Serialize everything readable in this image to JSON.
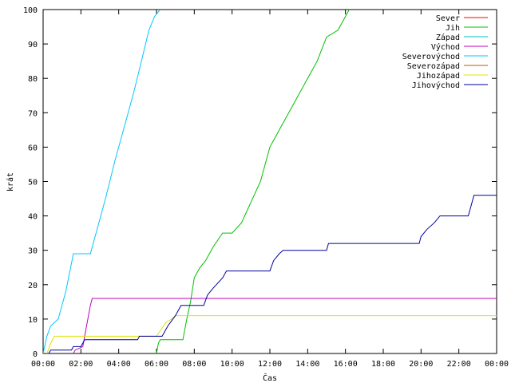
{
  "chart_data": {
    "type": "line",
    "title": "",
    "xlabel": "Čas",
    "ylabel": "krát",
    "xlim": [
      0,
      24
    ],
    "ylim": [
      0,
      100
    ],
    "x_unit": "hours",
    "x_ticks": [
      0,
      2,
      4,
      6,
      8,
      10,
      12,
      14,
      16,
      18,
      20,
      22,
      24
    ],
    "x_tick_labels": [
      "00:00",
      "02:00",
      "04:00",
      "06:00",
      "08:00",
      "10:00",
      "12:00",
      "14:00",
      "16:00",
      "18:00",
      "20:00",
      "22:00",
      "00:00"
    ],
    "y_ticks": [
      0,
      10,
      20,
      30,
      40,
      50,
      60,
      70,
      80,
      90,
      100
    ],
    "y_tick_labels": [
      "0",
      "10",
      "20",
      "30",
      "40",
      "50",
      "60",
      "70",
      "80",
      "90",
      "100"
    ],
    "grid": false,
    "legend_position": "top-right",
    "series": [
      {
        "name": "Sever",
        "color": "#ff0000",
        "points": []
      },
      {
        "name": "Jih",
        "color": "#00c000",
        "points": [
          [
            6.0,
            0
          ],
          [
            6.1,
            3
          ],
          [
            6.2,
            4
          ],
          [
            7.4,
            4
          ],
          [
            7.6,
            10
          ],
          [
            7.8,
            15
          ],
          [
            8.0,
            22
          ],
          [
            8.3,
            25
          ],
          [
            8.6,
            27
          ],
          [
            9.0,
            31
          ],
          [
            9.5,
            35
          ],
          [
            10.0,
            35
          ],
          [
            10.5,
            38
          ],
          [
            11.0,
            44
          ],
          [
            11.5,
            50
          ],
          [
            12.0,
            60
          ],
          [
            12.5,
            65
          ],
          [
            13.0,
            70
          ],
          [
            13.5,
            75
          ],
          [
            14.0,
            80
          ],
          [
            14.5,
            85
          ],
          [
            15.0,
            92
          ],
          [
            15.6,
            94
          ],
          [
            16.2,
            100
          ]
        ]
      },
      {
        "name": "Západ",
        "color": "#00c0c0",
        "points": []
      },
      {
        "name": "Východ",
        "color": "#c000c0",
        "points": [
          [
            1.6,
            0
          ],
          [
            1.7,
            1
          ],
          [
            2.1,
            2
          ],
          [
            2.3,
            8
          ],
          [
            2.5,
            14
          ],
          [
            2.6,
            16
          ],
          [
            24.0,
            16
          ]
        ]
      },
      {
        "name": "Severovýchod",
        "color": "#00c8ff",
        "points": [
          [
            0.0,
            0
          ],
          [
            0.2,
            5
          ],
          [
            0.4,
            8
          ],
          [
            0.8,
            10
          ],
          [
            1.2,
            18
          ],
          [
            1.6,
            29
          ],
          [
            2.5,
            29
          ],
          [
            2.8,
            35
          ],
          [
            3.3,
            45
          ],
          [
            3.8,
            56
          ],
          [
            4.3,
            66
          ],
          [
            4.8,
            76
          ],
          [
            5.2,
            85
          ],
          [
            5.6,
            94
          ],
          [
            5.9,
            98
          ],
          [
            6.2,
            100
          ]
        ]
      },
      {
        "name": "Severozápad",
        "color": "#b26200",
        "points": []
      },
      {
        "name": "Jihozápad",
        "color": "#e0e000",
        "points": [
          [
            0.2,
            0
          ],
          [
            0.4,
            3
          ],
          [
            0.6,
            5
          ],
          [
            5.2,
            5
          ],
          [
            6.0,
            5
          ],
          [
            6.5,
            9
          ],
          [
            6.8,
            10
          ],
          [
            7.0,
            11
          ],
          [
            24.0,
            11
          ]
        ]
      },
      {
        "name": "Jihovýchod",
        "color": "#0000a0",
        "points": [
          [
            0.3,
            0
          ],
          [
            0.4,
            1
          ],
          [
            1.5,
            1
          ],
          [
            1.6,
            2
          ],
          [
            2.0,
            2
          ],
          [
            2.2,
            4
          ],
          [
            5.0,
            4
          ],
          [
            5.1,
            5
          ],
          [
            6.3,
            5
          ],
          [
            6.6,
            8
          ],
          [
            7.0,
            11
          ],
          [
            7.3,
            14
          ],
          [
            8.5,
            14
          ],
          [
            8.7,
            17
          ],
          [
            9.0,
            19
          ],
          [
            9.5,
            22
          ],
          [
            9.7,
            24
          ],
          [
            12.0,
            24
          ],
          [
            12.2,
            27
          ],
          [
            12.5,
            29
          ],
          [
            12.7,
            30
          ],
          [
            15.0,
            30
          ],
          [
            15.1,
            32
          ],
          [
            19.9,
            32
          ],
          [
            20.0,
            34
          ],
          [
            20.3,
            36
          ],
          [
            20.7,
            38
          ],
          [
            21.0,
            40
          ],
          [
            22.5,
            40
          ],
          [
            22.6,
            42
          ],
          [
            22.8,
            46
          ],
          [
            24.0,
            46
          ]
        ]
      }
    ]
  }
}
